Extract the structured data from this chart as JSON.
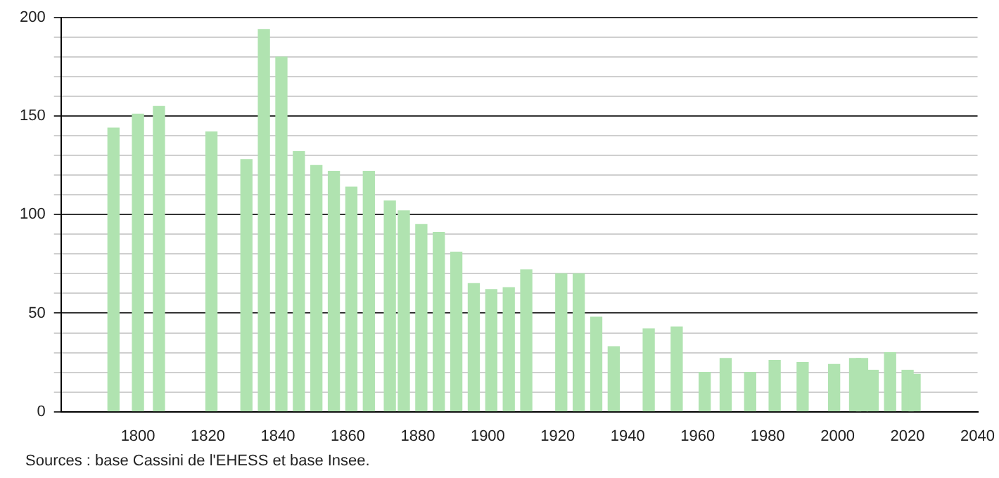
{
  "chart_data": {
    "type": "bar",
    "x": [
      1793,
      1800,
      1806,
      1821,
      1831,
      1836,
      1841,
      1846,
      1851,
      1856,
      1861,
      1866,
      1872,
      1876,
      1881,
      1886,
      1891,
      1896,
      1901,
      1906,
      1911,
      1921,
      1926,
      1931,
      1936,
      1946,
      1954,
      1962,
      1968,
      1975,
      1982,
      1990,
      1999,
      2005,
      2007,
      2010,
      2015,
      2020,
      2022
    ],
    "values": [
      144,
      151,
      155,
      142,
      128,
      194,
      180,
      132,
      125,
      122,
      114,
      122,
      107,
      102,
      95,
      91,
      81,
      65,
      62,
      63,
      72,
      70,
      70,
      48,
      33,
      42,
      43,
      20,
      27,
      20,
      26,
      25,
      24,
      27,
      27,
      21,
      30,
      21,
      19
    ],
    "color": "#b0e3b0",
    "xlim": [
      1778,
      2040
    ],
    "xticks": [
      1800,
      1820,
      1840,
      1860,
      1880,
      1900,
      1920,
      1940,
      1960,
      1980,
      2000,
      2020,
      2040
    ],
    "ylim": [
      0,
      200
    ],
    "yticks": [
      0,
      {
        "value": 10,
        "label": null
      },
      {
        "value": 20,
        "label": null
      },
      {
        "value": 30,
        "label": null
      },
      {
        "value": 40,
        "label": null
      },
      50,
      {
        "value": 60,
        "label": null
      },
      {
        "value": 70,
        "label": null
      },
      {
        "value": 80,
        "label": null
      },
      {
        "value": 90,
        "label": null
      },
      100,
      {
        "value": 110,
        "label": null
      },
      {
        "value": 120,
        "label": null
      },
      {
        "value": 130,
        "label": null
      },
      {
        "value": 140,
        "label": null
      },
      150,
      {
        "value": 160,
        "label": null
      },
      {
        "value": 170,
        "label": null
      },
      {
        "value": 180,
        "label": null
      },
      {
        "value": 190,
        "label": null
      },
      200
    ],
    "grid": "y",
    "legend": false,
    "annotations": [
      "Sources : base Cassini de l'EHESS et base Insee."
    ]
  }
}
